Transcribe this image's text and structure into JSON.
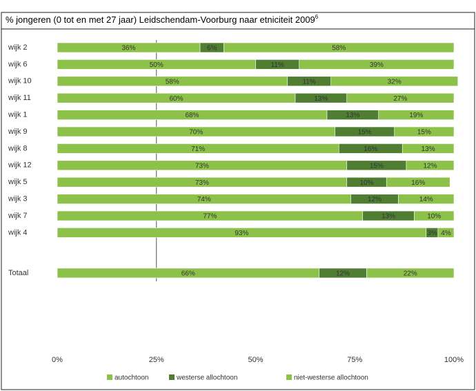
{
  "chart_data": {
    "type": "stacked-barh",
    "title": "% jongeren (0 tot en met 27 jaar) Leidschendam-Voorburg naar etniciteit 2009",
    "title_note": "6",
    "categories": [
      "wijk 2",
      "wijk 6",
      "wijk 10",
      "wijk 11",
      "wijk 1",
      "wijk 9",
      "wijk 8",
      "wijk 12",
      "wijk 5",
      "wijk 3",
      "wijk 7",
      "wijk 4",
      "Totaal"
    ],
    "series": [
      {
        "name": "autochtoon",
        "color": "#8cc24a",
        "label_color": "#444",
        "values": [
          36,
          50,
          58,
          60,
          68,
          70,
          71,
          73,
          73,
          74,
          77,
          93,
          66
        ],
        "value_labels": [
          "36%",
          "50%",
          "58%",
          "60%",
          "68%",
          "70%",
          "71%",
          "73%",
          "73%",
          "74%",
          "77%",
          "93%",
          "66%"
        ]
      },
      {
        "name": "westerse allochtoon",
        "color": "#4f7d32",
        "label_color": "#e8f2dc",
        "values": [
          6,
          11,
          11,
          13,
          13,
          15,
          16,
          15,
          10,
          12,
          13,
          3,
          12
        ],
        "value_labels": [
          "6%",
          "11%",
          "11%",
          "13%",
          "13%",
          "15%",
          "16%",
          "15%",
          "10%",
          "12%",
          "13%",
          "3%",
          "12%"
        ]
      },
      {
        "name": "niet-westerse allochtoon",
        "color": "#8cc24a",
        "label_color": "#444",
        "values": [
          58,
          39,
          32,
          27,
          19,
          15,
          13,
          12,
          16,
          14,
          10,
          4,
          22
        ],
        "value_labels": [
          "58%",
          "39%",
          "32%",
          "27%",
          "19%",
          "15%",
          "13%",
          "12%",
          "16%",
          "14%",
          "10%",
          "4%",
          "22%"
        ]
      }
    ],
    "xlim": [
      0,
      100
    ],
    "xticks": [
      {
        "value": 0,
        "label": "0%"
      },
      {
        "value": 25,
        "label": "25%"
      },
      {
        "value": 50,
        "label": "50%"
      },
      {
        "value": 75,
        "label": "75%"
      },
      {
        "value": 100,
        "label": "100%"
      }
    ],
    "reference_line": 25,
    "legend": "bottom"
  }
}
